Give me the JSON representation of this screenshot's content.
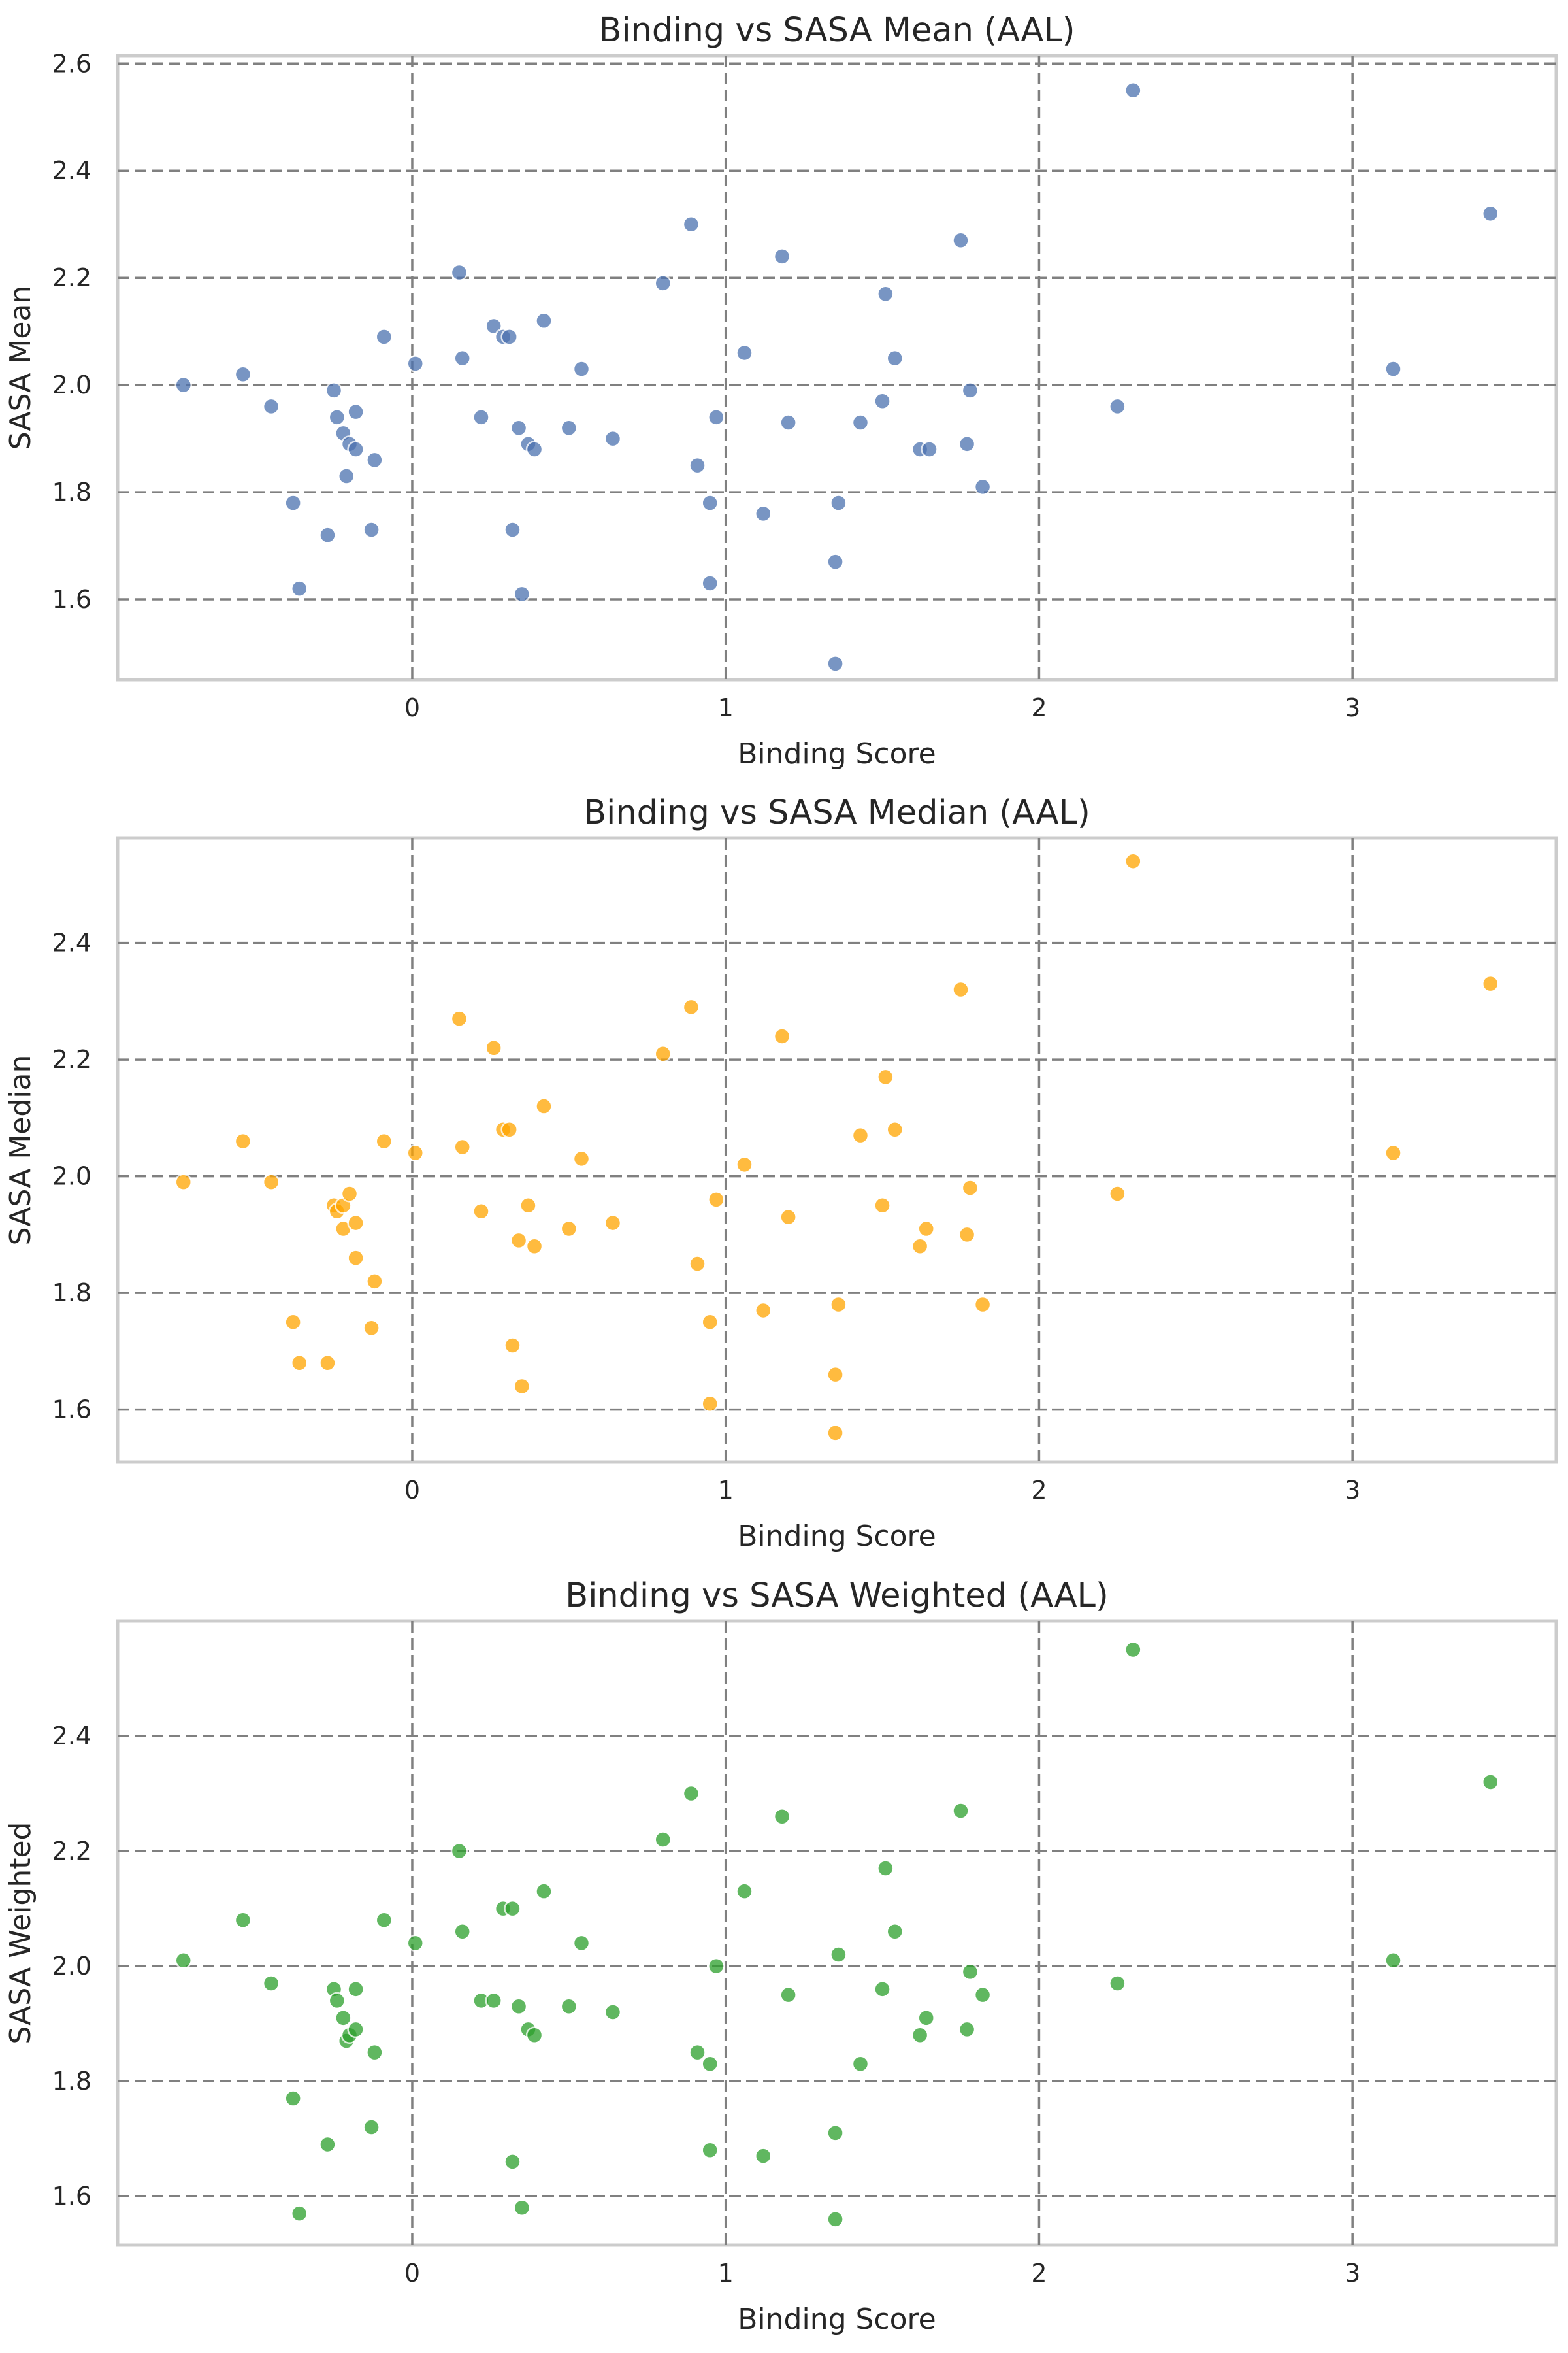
{
  "grid": true,
  "chart_data": [
    {
      "type": "scatter",
      "title": "Binding vs SASA Mean (AAL)",
      "xlabel": "Binding Score",
      "ylabel": "SASA Mean",
      "xlim": [
        -0.94,
        3.65
      ],
      "ylim": [
        1.45,
        2.615
      ],
      "xticks": [
        0,
        1,
        2,
        3
      ],
      "yticks": [
        1.6,
        1.8,
        2.0,
        2.2,
        2.4,
        2.6
      ],
      "xtick_labels": [
        "0",
        "1",
        "2",
        "3"
      ],
      "ytick_labels": [
        "1.6",
        "1.8",
        "2.0",
        "2.2",
        "2.4",
        "2.6"
      ],
      "color": "#4c72b0",
      "points": [
        {
          "x": -0.73,
          "y": 2.0
        },
        {
          "x": -0.54,
          "y": 2.02
        },
        {
          "x": -0.45,
          "y": 1.96
        },
        {
          "x": -0.38,
          "y": 1.78
        },
        {
          "x": -0.36,
          "y": 1.62
        },
        {
          "x": -0.27,
          "y": 1.72
        },
        {
          "x": -0.25,
          "y": 1.99
        },
        {
          "x": -0.24,
          "y": 1.94
        },
        {
          "x": -0.22,
          "y": 1.91
        },
        {
          "x": -0.21,
          "y": 1.83
        },
        {
          "x": -0.2,
          "y": 1.89
        },
        {
          "x": -0.18,
          "y": 1.95
        },
        {
          "x": -0.18,
          "y": 1.88
        },
        {
          "x": -0.13,
          "y": 1.73
        },
        {
          "x": -0.12,
          "y": 1.86
        },
        {
          "x": -0.09,
          "y": 2.09
        },
        {
          "x": 0.01,
          "y": 2.04
        },
        {
          "x": 0.15,
          "y": 2.21
        },
        {
          "x": 0.16,
          "y": 2.05
        },
        {
          "x": 0.22,
          "y": 1.94
        },
        {
          "x": 0.26,
          "y": 2.11
        },
        {
          "x": 0.29,
          "y": 2.09
        },
        {
          "x": 0.31,
          "y": 2.09
        },
        {
          "x": 0.32,
          "y": 1.73
        },
        {
          "x": 0.34,
          "y": 1.92
        },
        {
          "x": 0.35,
          "y": 1.61
        },
        {
          "x": 0.37,
          "y": 1.89
        },
        {
          "x": 0.39,
          "y": 1.88
        },
        {
          "x": 0.42,
          "y": 2.12
        },
        {
          "x": 0.5,
          "y": 1.92
        },
        {
          "x": 0.54,
          "y": 2.03
        },
        {
          "x": 0.64,
          "y": 1.9
        },
        {
          "x": 0.8,
          "y": 2.19
        },
        {
          "x": 0.89,
          "y": 2.3
        },
        {
          "x": 0.91,
          "y": 1.85
        },
        {
          "x": 0.95,
          "y": 1.78
        },
        {
          "x": 0.95,
          "y": 1.63
        },
        {
          "x": 0.97,
          "y": 1.94
        },
        {
          "x": 1.06,
          "y": 2.06
        },
        {
          "x": 1.12,
          "y": 1.76
        },
        {
          "x": 1.18,
          "y": 2.24
        },
        {
          "x": 1.2,
          "y": 1.93
        },
        {
          "x": 1.35,
          "y": 1.67
        },
        {
          "x": 1.35,
          "y": 1.48
        },
        {
          "x": 1.36,
          "y": 1.78
        },
        {
          "x": 1.43,
          "y": 1.93
        },
        {
          "x": 1.5,
          "y": 1.97
        },
        {
          "x": 1.51,
          "y": 2.17
        },
        {
          "x": 1.54,
          "y": 2.05
        },
        {
          "x": 1.62,
          "y": 1.88
        },
        {
          "x": 1.65,
          "y": 1.88
        },
        {
          "x": 1.75,
          "y": 2.27
        },
        {
          "x": 1.77,
          "y": 1.89
        },
        {
          "x": 1.78,
          "y": 1.99
        },
        {
          "x": 1.82,
          "y": 1.81
        },
        {
          "x": 2.25,
          "y": 1.96
        },
        {
          "x": 2.3,
          "y": 2.55
        },
        {
          "x": 3.13,
          "y": 2.03
        },
        {
          "x": 3.44,
          "y": 2.32
        }
      ]
    },
    {
      "type": "scatter",
      "title": "Binding vs SASA Median (AAL)",
      "xlabel": "Binding Score",
      "ylabel": "SASA Median",
      "xlim": [
        -0.94,
        3.65
      ],
      "ylim": [
        1.51,
        2.58
      ],
      "xticks": [
        0,
        1,
        2,
        3
      ],
      "yticks": [
        1.6,
        1.8,
        2.0,
        2.2,
        2.4
      ],
      "xtick_labels": [
        "0",
        "1",
        "2",
        "3"
      ],
      "ytick_labels": [
        "1.6",
        "1.8",
        "2.0",
        "2.2",
        "2.4"
      ],
      "color": "#ffa500",
      "points": [
        {
          "x": -0.73,
          "y": 1.99
        },
        {
          "x": -0.54,
          "y": 2.06
        },
        {
          "x": -0.45,
          "y": 1.99
        },
        {
          "x": -0.38,
          "y": 1.75
        },
        {
          "x": -0.36,
          "y": 1.68
        },
        {
          "x": -0.27,
          "y": 1.68
        },
        {
          "x": -0.25,
          "y": 1.95
        },
        {
          "x": -0.24,
          "y": 1.94
        },
        {
          "x": -0.22,
          "y": 1.95
        },
        {
          "x": -0.22,
          "y": 1.91
        },
        {
          "x": -0.2,
          "y": 1.97
        },
        {
          "x": -0.18,
          "y": 1.86
        },
        {
          "x": -0.18,
          "y": 1.92
        },
        {
          "x": -0.13,
          "y": 1.74
        },
        {
          "x": -0.12,
          "y": 1.82
        },
        {
          "x": -0.09,
          "y": 2.06
        },
        {
          "x": 0.01,
          "y": 2.04
        },
        {
          "x": 0.15,
          "y": 2.27
        },
        {
          "x": 0.16,
          "y": 2.05
        },
        {
          "x": 0.22,
          "y": 1.94
        },
        {
          "x": 0.26,
          "y": 2.22
        },
        {
          "x": 0.29,
          "y": 2.08
        },
        {
          "x": 0.31,
          "y": 2.08
        },
        {
          "x": 0.32,
          "y": 1.71
        },
        {
          "x": 0.34,
          "y": 1.89
        },
        {
          "x": 0.35,
          "y": 1.64
        },
        {
          "x": 0.37,
          "y": 1.95
        },
        {
          "x": 0.39,
          "y": 1.88
        },
        {
          "x": 0.42,
          "y": 2.12
        },
        {
          "x": 0.5,
          "y": 1.91
        },
        {
          "x": 0.54,
          "y": 2.03
        },
        {
          "x": 0.64,
          "y": 1.92
        },
        {
          "x": 0.8,
          "y": 2.21
        },
        {
          "x": 0.89,
          "y": 2.29
        },
        {
          "x": 0.91,
          "y": 1.85
        },
        {
          "x": 0.95,
          "y": 1.75
        },
        {
          "x": 0.95,
          "y": 1.61
        },
        {
          "x": 0.97,
          "y": 1.96
        },
        {
          "x": 1.06,
          "y": 2.02
        },
        {
          "x": 1.12,
          "y": 1.77
        },
        {
          "x": 1.18,
          "y": 2.24
        },
        {
          "x": 1.2,
          "y": 1.93
        },
        {
          "x": 1.35,
          "y": 1.66
        },
        {
          "x": 1.35,
          "y": 1.56
        },
        {
          "x": 1.36,
          "y": 1.78
        },
        {
          "x": 1.43,
          "y": 2.07
        },
        {
          "x": 1.5,
          "y": 1.95
        },
        {
          "x": 1.51,
          "y": 2.17
        },
        {
          "x": 1.54,
          "y": 2.08
        },
        {
          "x": 1.62,
          "y": 1.88
        },
        {
          "x": 1.64,
          "y": 1.91
        },
        {
          "x": 1.75,
          "y": 2.32
        },
        {
          "x": 1.77,
          "y": 1.9
        },
        {
          "x": 1.78,
          "y": 1.98
        },
        {
          "x": 1.82,
          "y": 1.78
        },
        {
          "x": 2.25,
          "y": 1.97
        },
        {
          "x": 2.3,
          "y": 2.54
        },
        {
          "x": 3.13,
          "y": 2.04
        },
        {
          "x": 3.44,
          "y": 2.33
        }
      ]
    },
    {
      "type": "scatter",
      "title": "Binding vs SASA Weighted (AAL)",
      "xlabel": "Binding Score",
      "ylabel": "SASA Weighted",
      "xlim": [
        -0.94,
        3.65
      ],
      "ylim": [
        1.515,
        2.6
      ],
      "xticks": [
        0,
        1,
        2,
        3
      ],
      "yticks": [
        1.6,
        1.8,
        2.0,
        2.2,
        2.4
      ],
      "xtick_labels": [
        "0",
        "1",
        "2",
        "3"
      ],
      "ytick_labels": [
        "1.6",
        "1.8",
        "2.0",
        "2.2",
        "2.4"
      ],
      "color": "#2ca02c",
      "points": [
        {
          "x": -0.73,
          "y": 2.01
        },
        {
          "x": -0.54,
          "y": 2.08
        },
        {
          "x": -0.45,
          "y": 1.97
        },
        {
          "x": -0.38,
          "y": 1.77
        },
        {
          "x": -0.36,
          "y": 1.57
        },
        {
          "x": -0.27,
          "y": 1.69
        },
        {
          "x": -0.25,
          "y": 1.96
        },
        {
          "x": -0.24,
          "y": 1.94
        },
        {
          "x": -0.22,
          "y": 1.91
        },
        {
          "x": -0.21,
          "y": 1.87
        },
        {
          "x": -0.2,
          "y": 1.88
        },
        {
          "x": -0.18,
          "y": 1.96
        },
        {
          "x": -0.18,
          "y": 1.89
        },
        {
          "x": -0.13,
          "y": 1.72
        },
        {
          "x": -0.12,
          "y": 1.85
        },
        {
          "x": -0.09,
          "y": 2.08
        },
        {
          "x": 0.01,
          "y": 2.04
        },
        {
          "x": 0.15,
          "y": 2.2
        },
        {
          "x": 0.16,
          "y": 2.06
        },
        {
          "x": 0.22,
          "y": 1.94
        },
        {
          "x": 0.26,
          "y": 1.94
        },
        {
          "x": 0.29,
          "y": 2.1
        },
        {
          "x": 0.32,
          "y": 2.1
        },
        {
          "x": 0.32,
          "y": 1.66
        },
        {
          "x": 0.34,
          "y": 1.93
        },
        {
          "x": 0.35,
          "y": 1.58
        },
        {
          "x": 0.37,
          "y": 1.89
        },
        {
          "x": 0.39,
          "y": 1.88
        },
        {
          "x": 0.42,
          "y": 2.13
        },
        {
          "x": 0.5,
          "y": 1.93
        },
        {
          "x": 0.54,
          "y": 2.04
        },
        {
          "x": 0.64,
          "y": 1.92
        },
        {
          "x": 0.8,
          "y": 2.22
        },
        {
          "x": 0.89,
          "y": 2.3
        },
        {
          "x": 0.91,
          "y": 1.85
        },
        {
          "x": 0.95,
          "y": 1.83
        },
        {
          "x": 0.95,
          "y": 1.68
        },
        {
          "x": 0.97,
          "y": 2.0
        },
        {
          "x": 1.06,
          "y": 2.13
        },
        {
          "x": 1.12,
          "y": 1.67
        },
        {
          "x": 1.18,
          "y": 2.26
        },
        {
          "x": 1.2,
          "y": 1.95
        },
        {
          "x": 1.35,
          "y": 1.71
        },
        {
          "x": 1.35,
          "y": 1.56
        },
        {
          "x": 1.36,
          "y": 2.02
        },
        {
          "x": 1.43,
          "y": 1.83
        },
        {
          "x": 1.5,
          "y": 1.96
        },
        {
          "x": 1.51,
          "y": 2.17
        },
        {
          "x": 1.54,
          "y": 2.06
        },
        {
          "x": 1.62,
          "y": 1.88
        },
        {
          "x": 1.64,
          "y": 1.91
        },
        {
          "x": 1.75,
          "y": 2.27
        },
        {
          "x": 1.77,
          "y": 1.89
        },
        {
          "x": 1.78,
          "y": 1.99
        },
        {
          "x": 1.82,
          "y": 1.95
        },
        {
          "x": 2.25,
          "y": 1.97
        },
        {
          "x": 2.3,
          "y": 2.55
        },
        {
          "x": 3.13,
          "y": 2.01
        },
        {
          "x": 3.44,
          "y": 2.32
        }
      ]
    }
  ]
}
